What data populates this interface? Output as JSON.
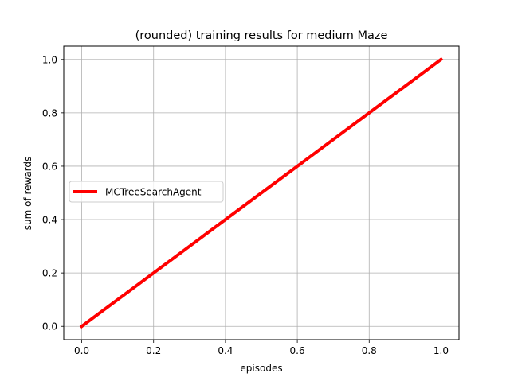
{
  "chart_data": {
    "type": "line",
    "title": "(rounded) training results for medium Maze",
    "xlabel": "episodes",
    "ylabel": "sum of rewards",
    "xlim": [
      -0.05,
      1.05
    ],
    "ylim": [
      -0.05,
      1.05
    ],
    "xticks": [
      0.0,
      0.2,
      0.4,
      0.6,
      0.8,
      1.0
    ],
    "xtick_labels": [
      "0.0",
      "0.2",
      "0.4",
      "0.6",
      "0.8",
      "1.0"
    ],
    "yticks": [
      0.0,
      0.2,
      0.4,
      0.6,
      0.8,
      1.0
    ],
    "ytick_labels": [
      "0.0",
      "0.2",
      "0.4",
      "0.6",
      "0.8",
      "1.0"
    ],
    "grid": true,
    "legend_position": "center-left",
    "series": [
      {
        "name": "MCTreeSearchAgent",
        "color": "#ff0000",
        "x": [
          0.0,
          1.0
        ],
        "y": [
          0.0,
          1.0
        ]
      }
    ]
  }
}
